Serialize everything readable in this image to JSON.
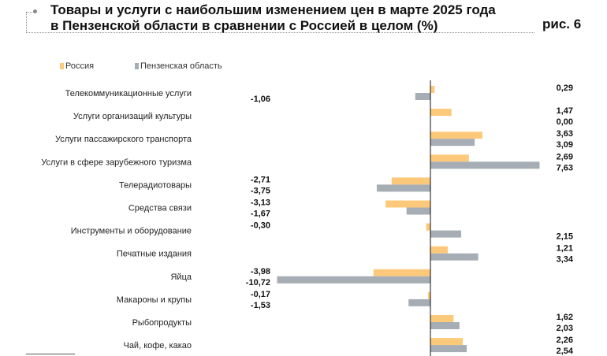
{
  "header": {
    "title_line1": "Товары и услуги с наибольшим изменением цен в марте 2025 года",
    "title_line2": "в Пензенской области в сравнении с Россией в целом (%)",
    "figure_label": "рис. 6"
  },
  "chart_data": {
    "type": "bar",
    "orientation": "horizontal",
    "title": "Товары и услуги с наибольшим изменением цен в марте 2025 года в Пензенской области в сравнении с Россией в целом (%)",
    "legend_placement": "top-left",
    "categories": [
      "Телекоммуникационные услуги",
      "Услуги организаций культуры",
      "Услуги пассажирского транспорта",
      "Услуги в сфере зарубежного туризма",
      "Телерадиотовары",
      "Средства связи",
      "Инструменты и оборудование",
      "Печатные издания",
      "Яйца",
      "Макароны и крупы",
      "Рыбопродукты",
      "Чай, кофе, какао"
    ],
    "series": [
      {
        "name": "Россия",
        "color": "#fcc97a",
        "values": [
          0.29,
          1.47,
          3.63,
          2.69,
          -2.71,
          -3.13,
          -0.3,
          1.21,
          -3.98,
          -0.17,
          1.62,
          2.26
        ],
        "labels": [
          "0,29",
          "1,47",
          "3,63",
          "2,69",
          "-2,71",
          "-3,13",
          "-0,30",
          "1,21",
          "-3,98",
          "-0,17",
          "1,62",
          "2,26"
        ]
      },
      {
        "name": "Пензенская область",
        "color": "#a6adb4",
        "values": [
          -1.06,
          0.0,
          3.09,
          7.63,
          -3.75,
          -1.67,
          2.15,
          3.34,
          -10.72,
          -1.53,
          2.03,
          2.54
        ],
        "labels": [
          "-1,06",
          "0,00",
          "3,09",
          "7,63",
          "-3,75",
          "-1,67",
          "2,15",
          "3,34",
          "-10,72",
          "-1,53",
          "2,03",
          "2,54"
        ]
      }
    ],
    "xlim": [
      -10.72,
      7.63
    ],
    "grid": false
  }
}
